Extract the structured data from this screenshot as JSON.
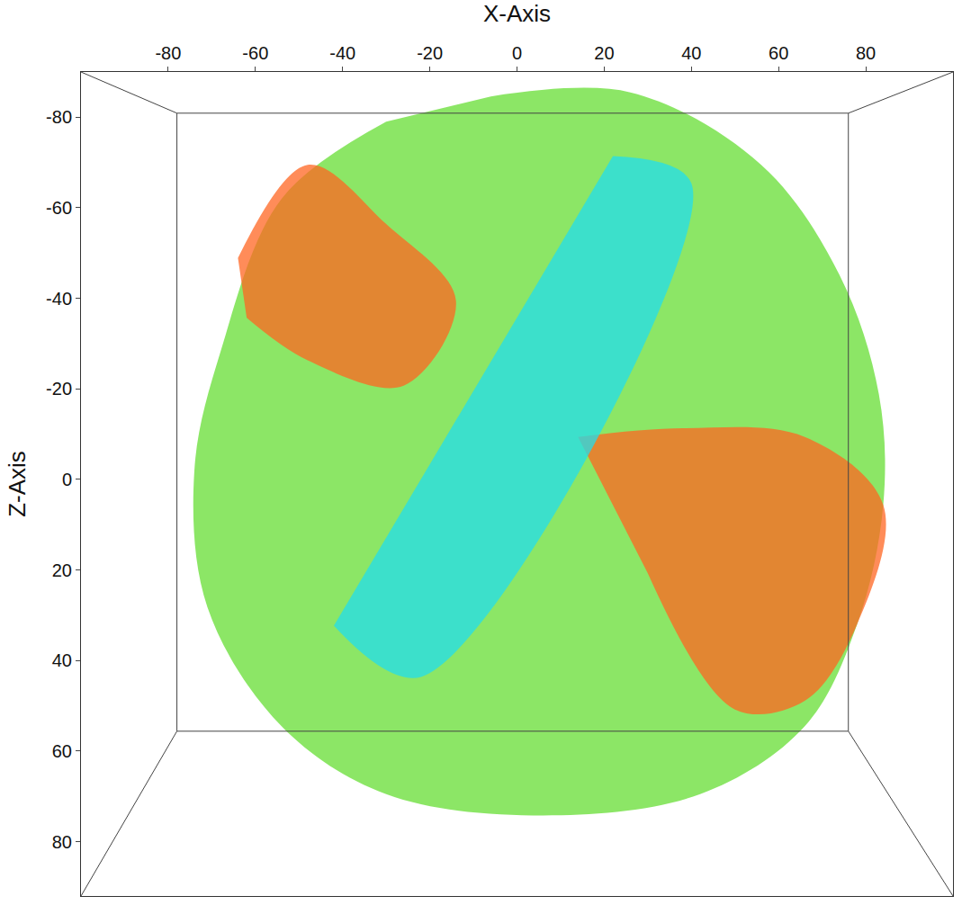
{
  "chart_data": {
    "type": "polygon",
    "x_label": "X-Axis",
    "y_label": "Z-Axis",
    "xlim": [
      -100,
      100
    ],
    "ylim": [
      92,
      -90
    ],
    "xticks": [
      -80,
      -60,
      -40,
      -20,
      0,
      20,
      40,
      60,
      80
    ],
    "yticks": [
      -80,
      -60,
      -40,
      -20,
      0,
      20,
      40,
      60,
      80
    ],
    "grid": false,
    "series": [
      {
        "color": "#66dd33",
        "x": [
          -6,
          26,
          56,
          74,
          83,
          84,
          78,
          66,
          42,
          6,
          -30,
          -54,
          -71,
          -74,
          -68,
          -54,
          -30
        ],
        "y": [
          -84.6,
          -85.5,
          -69.5,
          -45.1,
          -18.8,
          5.6,
          32,
          54.5,
          69.5,
          74.2,
          69.5,
          54.5,
          28.2,
          -1.9,
          -28.2,
          -62,
          -79
        ]
      },
      {
        "color": "#ff6622",
        "x": [
          -64,
          -48,
          -30,
          -14,
          -26,
          -48,
          -62
        ],
        "y": [
          -48.9,
          -69.5,
          -56.4,
          -39.5,
          -20.7,
          -26.3,
          -35.7
        ]
      },
      {
        "color": "#ff6622",
        "x": [
          14,
          38,
          66,
          84,
          78,
          66,
          50,
          30
        ],
        "y": [
          -9.4,
          -11.3,
          -9.4,
          5.6,
          32,
          48.9,
          50.8,
          20.7
        ]
      },
      {
        "color": "#22ddee",
        "x": [
          22,
          40,
          -22,
          -42
        ],
        "y": [
          -71.4,
          -65.4,
          43.6,
          32.3
        ]
      }
    ]
  }
}
